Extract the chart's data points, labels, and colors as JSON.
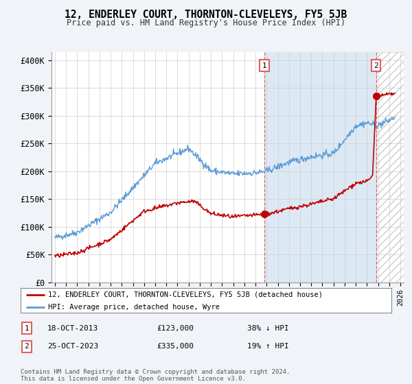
{
  "title": "12, ENDERLEY COURT, THORNTON-CLEVELEYS, FY5 5JB",
  "subtitle": "Price paid vs. HM Land Registry's House Price Index (HPI)",
  "ylabel_ticks": [
    "£0",
    "£50K",
    "£100K",
    "£150K",
    "£200K",
    "£250K",
    "£300K",
    "£350K",
    "£400K"
  ],
  "ytick_values": [
    0,
    50000,
    100000,
    150000,
    200000,
    250000,
    300000,
    350000,
    400000
  ],
  "ylim": [
    0,
    415000
  ],
  "xlim_start": 1994.7,
  "xlim_end": 2026.3,
  "hpi_color": "#5b9bd5",
  "price_color": "#c00000",
  "dashed_line_color": "#e06060",
  "shaded_region_color": "#dce9f5",
  "hatched_region_color": "#e8e8e8",
  "marker1_date": 2013.8,
  "marker1_price": 123000,
  "marker2_date": 2023.82,
  "marker2_price": 335000,
  "legend_label1": "12, ENDERLEY COURT, THORNTON-CLEVELEYS, FY5 5JB (detached house)",
  "legend_label2": "HPI: Average price, detached house, Wyre",
  "table_row1": [
    "1",
    "18-OCT-2013",
    "£123,000",
    "38% ↓ HPI"
  ],
  "table_row2": [
    "2",
    "25-OCT-2023",
    "£335,000",
    "19% ↑ HPI"
  ],
  "footnote": "Contains HM Land Registry data © Crown copyright and database right 2024.\nThis data is licensed under the Open Government Licence v3.0.",
  "background_color": "#f0f4f8",
  "plot_bg_color": "#ffffff",
  "grid_color": "#cccccc"
}
